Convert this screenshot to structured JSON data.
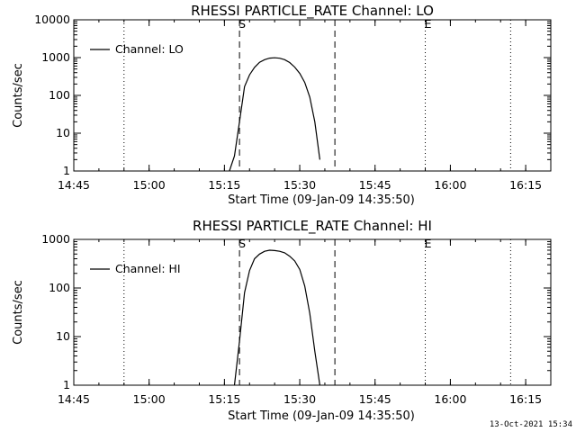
{
  "chart_data": [
    {
      "type": "line",
      "title": "RHESSI PARTICLE_RATE Channel: LO",
      "xlabel": "Start Time (09-Jan-09 14:35:50)",
      "ylabel": "Counts/sec",
      "yscale": "log",
      "ylim": [
        1,
        10000
      ],
      "xlim_minutes": [
        5.0,
        100.0
      ],
      "x_tick_labels": [
        "14:45",
        "15:00",
        "15:15",
        "15:30",
        "15:45",
        "16:00",
        "16:15"
      ],
      "y_tick_labels": [
        "1",
        "10",
        "100",
        "1000",
        "10000"
      ],
      "y_ticks": [
        1,
        10,
        100,
        1000,
        10000
      ],
      "legend": {
        "placement": "top-left",
        "entries": [
          "Channel: LO"
        ]
      },
      "markers": {
        "S": "15:18",
        "E": "15:55"
      },
      "series": [
        {
          "name": "Channel: LO",
          "x": [
            "15:16",
            "15:17",
            "15:18",
            "15:19",
            "15:20",
            "15:21",
            "15:22",
            "15:23",
            "15:24",
            "15:25",
            "15:26",
            "15:27",
            "15:28",
            "15:29",
            "15:30",
            "15:31",
            "15:32",
            "15:33",
            "15:34"
          ],
          "y": [
            1,
            2.5,
            20,
            170,
            350,
            550,
            750,
            880,
            970,
            990,
            960,
            880,
            740,
            560,
            380,
            220,
            90,
            20,
            2
          ]
        }
      ]
    },
    {
      "type": "line",
      "title": "RHESSI PARTICLE_RATE Channel: HI",
      "xlabel": "Start Time (09-Jan-09 14:35:50)",
      "ylabel": "Counts/sec",
      "yscale": "log",
      "ylim": [
        1,
        1000
      ],
      "xlim_minutes": [
        5.0,
        100.0
      ],
      "x_tick_labels": [
        "14:45",
        "15:00",
        "15:15",
        "15:30",
        "15:45",
        "16:00",
        "16:15"
      ],
      "y_tick_labels": [
        "1",
        "10",
        "100",
        "1000"
      ],
      "y_ticks": [
        1,
        10,
        100,
        1000
      ],
      "legend": {
        "placement": "top-left",
        "entries": [
          "Channel: HI"
        ]
      },
      "markers": {
        "S": "15:18",
        "E": "15:55"
      },
      "series": [
        {
          "name": "Channel: HI",
          "x": [
            "15:17",
            "15:18",
            "15:19",
            "15:20",
            "15:21",
            "15:22",
            "15:23",
            "15:24",
            "15:25",
            "15:26",
            "15:27",
            "15:28",
            "15:29",
            "15:30",
            "15:31",
            "15:32",
            "15:33",
            "15:34"
          ],
          "y": [
            1,
            8,
            80,
            230,
            400,
            500,
            570,
            600,
            590,
            570,
            530,
            450,
            360,
            240,
            110,
            30,
            5,
            1
          ]
        }
      ]
    }
  ],
  "footer": {
    "timestamp": "13-Oct-2021 15:34"
  }
}
